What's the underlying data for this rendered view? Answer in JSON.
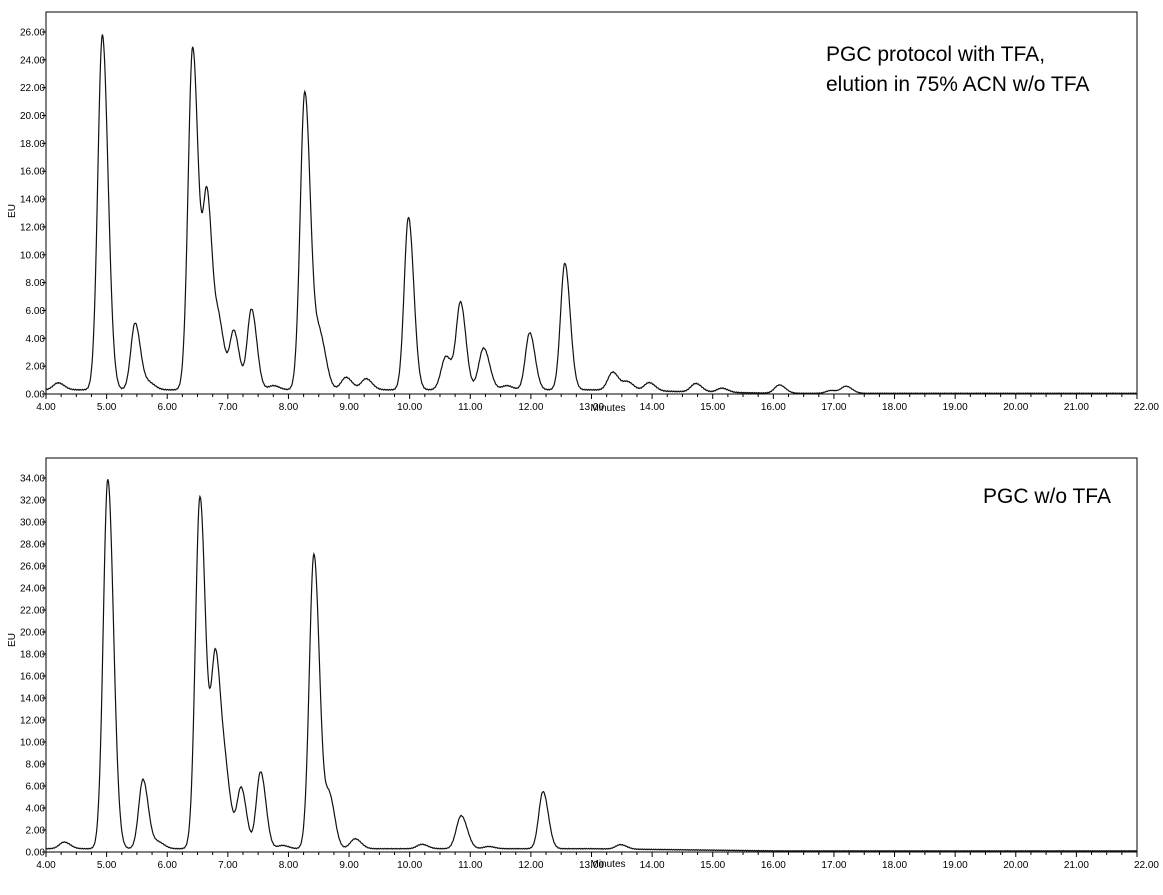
{
  "chart_data": [
    {
      "type": "line",
      "xlabel": "Minutes",
      "ylabel": "EU",
      "xlim": [
        4.0,
        22.0
      ],
      "ylim": [
        0.0,
        26.0
      ],
      "x_ticks": [
        "4.00",
        "5.00",
        "6.00",
        "7.00",
        "8.00",
        "9.00",
        "10.00",
        "11.00",
        "12.00",
        "13.00",
        "14.00",
        "15.00",
        "16.00",
        "17.00",
        "18.00",
        "19.00",
        "20.00",
        "21.00",
        "22.00"
      ],
      "y_ticks": [
        "0.00",
        "2.00",
        "4.00",
        "6.00",
        "8.00",
        "10.00",
        "12.00",
        "14.00",
        "16.00",
        "18.00",
        "20.00",
        "22.00",
        "24.00",
        "26.00"
      ],
      "annotation": [
        "PGC protocol with TFA,",
        "elution in 75% ACN w/o TFA"
      ],
      "baseline": 0.3,
      "tail_baseline": 0.05,
      "peaks": [
        {
          "rt": 4.2,
          "height": 0.5
        },
        {
          "rt": 4.93,
          "height": 25.5
        },
        {
          "rt": 5.47,
          "height": 4.8
        },
        {
          "rt": 5.7,
          "height": 0.5
        },
        {
          "rt": 6.42,
          "height": 24.6
        },
        {
          "rt": 6.66,
          "height": 13.5
        },
        {
          "rt": 6.86,
          "height": 4.4
        },
        {
          "rt": 7.1,
          "height": 4.2
        },
        {
          "rt": 7.39,
          "height": 5.8
        },
        {
          "rt": 7.75,
          "height": 0.3
        },
        {
          "rt": 8.27,
          "height": 21.4
        },
        {
          "rt": 8.52,
          "height": 3.8
        },
        {
          "rt": 8.95,
          "height": 0.9
        },
        {
          "rt": 9.28,
          "height": 0.8
        },
        {
          "rt": 9.98,
          "height": 12.4
        },
        {
          "rt": 10.6,
          "height": 2.4
        },
        {
          "rt": 10.84,
          "height": 6.2
        },
        {
          "rt": 11.22,
          "height": 3.0
        },
        {
          "rt": 11.6,
          "height": 0.3
        },
        {
          "rt": 11.98,
          "height": 4.1
        },
        {
          "rt": 12.56,
          "height": 9.1
        },
        {
          "rt": 13.35,
          "height": 1.3
        },
        {
          "rt": 13.6,
          "height": 0.6
        },
        {
          "rt": 13.95,
          "height": 0.6
        },
        {
          "rt": 14.72,
          "height": 0.6
        },
        {
          "rt": 15.15,
          "height": 0.3
        },
        {
          "rt": 16.1,
          "height": 0.6
        },
        {
          "rt": 16.95,
          "height": 0.2
        },
        {
          "rt": 17.2,
          "height": 0.5
        }
      ]
    },
    {
      "type": "line",
      "xlabel": "Minutes",
      "ylabel": "EU",
      "xlim": [
        4.0,
        22.0
      ],
      "ylim": [
        0.0,
        34.0
      ],
      "x_ticks": [
        "4.00",
        "5.00",
        "6.00",
        "7.00",
        "8.00",
        "9.00",
        "10.00",
        "11.00",
        "12.00",
        "13.00",
        "14.00",
        "15.00",
        "16.00",
        "17.00",
        "18.00",
        "19.00",
        "20.00",
        "21.00",
        "22.00"
      ],
      "y_ticks": [
        "0.00",
        "2.00",
        "4.00",
        "6.00",
        "8.00",
        "10.00",
        "12.00",
        "14.00",
        "16.00",
        "18.00",
        "20.00",
        "22.00",
        "24.00",
        "26.00",
        "28.00",
        "30.00",
        "32.00",
        "34.00"
      ],
      "annotation": [
        "PGC w/o TFA"
      ],
      "baseline": 0.3,
      "tail_baseline": 0.1,
      "peaks": [
        {
          "rt": 4.3,
          "height": 0.6
        },
        {
          "rt": 5.02,
          "height": 33.6
        },
        {
          "rt": 5.6,
          "height": 6.3
        },
        {
          "rt": 5.85,
          "height": 0.6
        },
        {
          "rt": 6.54,
          "height": 32.0
        },
        {
          "rt": 6.8,
          "height": 17.3
        },
        {
          "rt": 6.98,
          "height": 5.0
        },
        {
          "rt": 7.22,
          "height": 5.5
        },
        {
          "rt": 7.54,
          "height": 7.0
        },
        {
          "rt": 7.9,
          "height": 0.3
        },
        {
          "rt": 8.42,
          "height": 26.8
        },
        {
          "rt": 8.68,
          "height": 4.6
        },
        {
          "rt": 9.1,
          "height": 0.9
        },
        {
          "rt": 10.2,
          "height": 0.4
        },
        {
          "rt": 10.85,
          "height": 3.0
        },
        {
          "rt": 11.3,
          "height": 0.2
        },
        {
          "rt": 12.2,
          "height": 5.2
        },
        {
          "rt": 13.48,
          "height": 0.4
        }
      ]
    }
  ]
}
